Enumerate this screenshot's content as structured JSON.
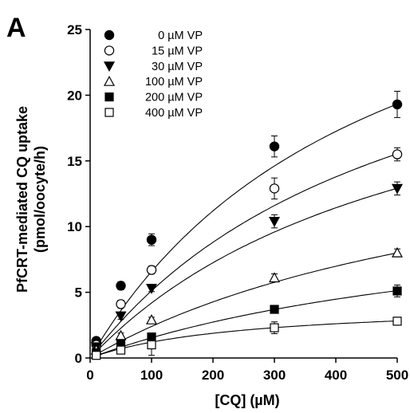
{
  "panel_label": "A",
  "chart_data": {
    "type": "scatter",
    "title": "",
    "xlabel": "[CQ] (µM)",
    "ylabel_lines": [
      "PfCRT-mediated CQ uptake",
      "(pmol/oocyte/h)"
    ],
    "xlim": [
      0,
      500
    ],
    "ylim": [
      0,
      25
    ],
    "xticks": [
      0,
      100,
      200,
      300,
      400,
      500
    ],
    "yticks": [
      0,
      5,
      10,
      15,
      20,
      25
    ],
    "grid": false,
    "legend_position": "top-left",
    "fitted_curves": true,
    "series": [
      {
        "name": "0 µM VP",
        "marker": "circle-filled",
        "x": [
          10,
          50,
          100,
          300,
          500
        ],
        "y": [
          1.3,
          5.5,
          9.0,
          16.1,
          19.3
        ],
        "err": [
          0.25,
          0.3,
          0.45,
          0.8,
          1.0
        ],
        "fit": {
          "vmax": 37.5,
          "km": 470
        }
      },
      {
        "name": "15 µM VP",
        "marker": "circle-open",
        "x": [
          10,
          50,
          100,
          300,
          500
        ],
        "y": [
          1.0,
          4.1,
          6.7,
          12.9,
          15.5
        ],
        "err": [
          0.2,
          0.3,
          0.3,
          0.8,
          0.5
        ],
        "fit": {
          "vmax": 31.7,
          "km": 520
        }
      },
      {
        "name": "30 µM VP",
        "marker": "triangle-down-filled",
        "x": [
          10,
          50,
          100,
          300,
          500
        ],
        "y": [
          0.85,
          3.2,
          5.3,
          10.4,
          12.9
        ],
        "err": [
          0.2,
          0.25,
          0.25,
          0.5,
          0.5
        ],
        "fit": {
          "vmax": 27.0,
          "km": 545
        }
      },
      {
        "name": "100 µM VP",
        "marker": "triangle-up-open",
        "x": [
          10,
          50,
          100,
          300,
          500
        ],
        "y": [
          0.6,
          1.7,
          2.9,
          6.1,
          8.0
        ],
        "err": [
          0.15,
          0.2,
          0.2,
          0.3,
          0.3
        ],
        "fit": {
          "vmax": 19.2,
          "km": 700
        }
      },
      {
        "name": "200 µM VP",
        "marker": "square-filled",
        "x": [
          10,
          50,
          100,
          300,
          500
        ],
        "y": [
          0.4,
          1.1,
          1.6,
          3.7,
          5.1
        ],
        "err": [
          0.15,
          0.2,
          0.2,
          0.3,
          0.45
        ],
        "fit": {
          "vmax": 12.3,
          "km": 700
        }
      },
      {
        "name": "400 µM VP",
        "marker": "square-open",
        "x": [
          10,
          50,
          100,
          300,
          500
        ],
        "y": [
          0.2,
          0.6,
          1.0,
          2.3,
          2.8
        ],
        "err": [
          0.1,
          0.15,
          0.8,
          0.45,
          0.3
        ],
        "fit": {
          "vmax": 4.23,
          "km": 250
        }
      }
    ]
  }
}
